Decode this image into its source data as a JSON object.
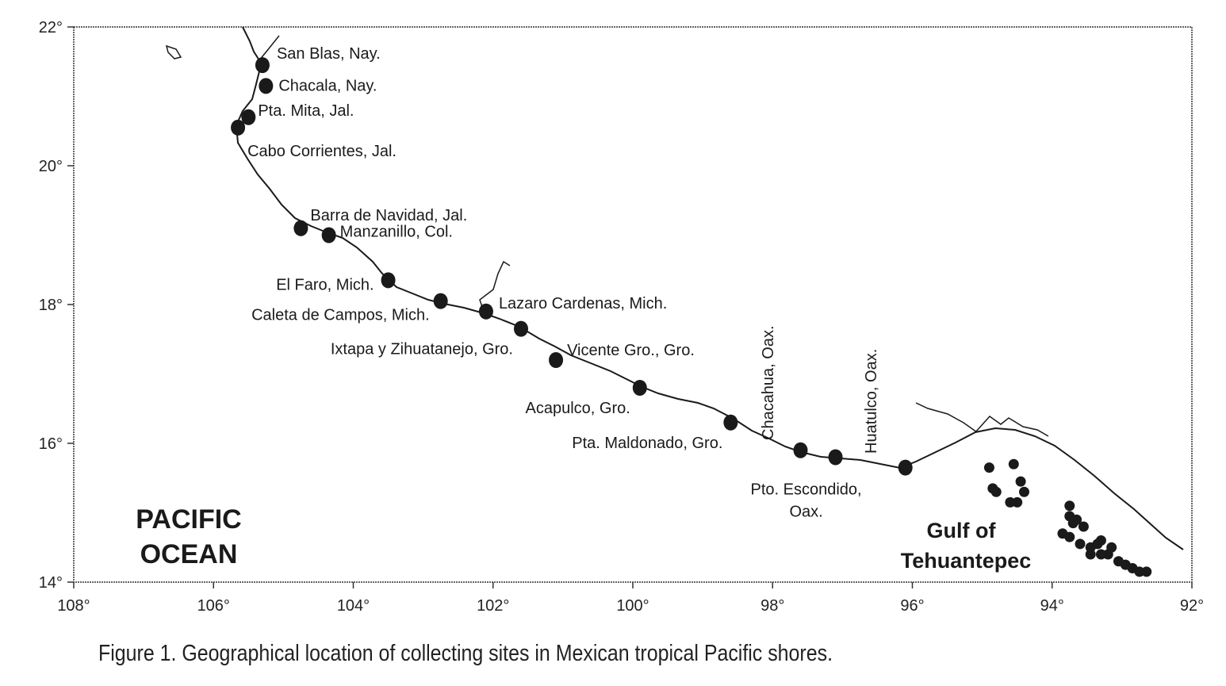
{
  "colors": {
    "ink": "#1a1a1a",
    "paper": "#ffffff"
  },
  "axes": {
    "x_ticks": [
      "108°",
      "106°",
      "104°",
      "102°",
      "100°",
      "98°",
      "96°",
      "94°",
      "92°"
    ],
    "y_ticks": [
      "22°",
      "20°",
      "18°",
      "16°",
      "14°"
    ],
    "lon_range": [
      -108,
      -92
    ],
    "lat_range": [
      14,
      22
    ]
  },
  "regions": {
    "pacific_line1": "PACIFIC",
    "pacific_line2": "OCEAN",
    "gulf_line1": "Gulf of",
    "gulf_line2": "Tehuantepec"
  },
  "sites": [
    {
      "label": "San Blas, Nay.",
      "lon": -105.3,
      "lat": 21.45
    },
    {
      "label": "Chacala, Nay.",
      "lon": -105.25,
      "lat": 21.15
    },
    {
      "label": "Pta. Mita, Jal.",
      "lon": -105.5,
      "lat": 20.7
    },
    {
      "label": "Cabo Corrientes, Jal.",
      "lon": -105.65,
      "lat": 20.55
    },
    {
      "label": "Barra de Navidad, Jal.",
      "lon": -104.75,
      "lat": 19.1
    },
    {
      "label": "Manzanillo, Col.",
      "lon": -104.35,
      "lat": 19.0
    },
    {
      "label": "El Faro, Mich.",
      "lon": -103.5,
      "lat": 18.35
    },
    {
      "label": "Caleta de Campos, Mich.",
      "lon": -102.75,
      "lat": 18.05
    },
    {
      "label": "Lazaro Cardenas, Mich.",
      "lon": -102.1,
      "lat": 17.9
    },
    {
      "label": "Ixtapa y Zihuatanejo, Gro.",
      "lon": -101.6,
      "lat": 17.65
    },
    {
      "label": "Vicente Gro., Gro.",
      "lon": -101.1,
      "lat": 17.2
    },
    {
      "label": "Acapulco, Gro.",
      "lon": -99.9,
      "lat": 16.8
    },
    {
      "label": "Pta. Maldonado, Gro.",
      "lon": -98.6,
      "lat": 16.3
    },
    {
      "label": "Chacahua, Oax.",
      "lon": -97.6,
      "lat": 15.9
    },
    {
      "label": "Pto. Escondido,",
      "label2": "Oax.",
      "lon": -97.1,
      "lat": 15.8
    },
    {
      "label": "Huatulco, Oax.",
      "lon": -96.1,
      "lat": 15.65
    }
  ],
  "gulf_points": [
    [
      -94.9,
      15.65
    ],
    [
      -94.85,
      15.35
    ],
    [
      -94.8,
      15.3
    ],
    [
      -94.55,
      15.7
    ],
    [
      -94.45,
      15.45
    ],
    [
      -94.4,
      15.3
    ],
    [
      -94.6,
      15.15
    ],
    [
      -94.5,
      15.15
    ],
    [
      -93.75,
      15.1
    ],
    [
      -93.75,
      14.95
    ],
    [
      -93.7,
      14.85
    ],
    [
      -93.65,
      14.9
    ],
    [
      -93.85,
      14.7
    ],
    [
      -93.75,
      14.65
    ],
    [
      -93.55,
      14.8
    ],
    [
      -93.6,
      14.55
    ],
    [
      -93.45,
      14.5
    ],
    [
      -93.35,
      14.55
    ],
    [
      -93.3,
      14.6
    ],
    [
      -93.45,
      14.4
    ],
    [
      -93.3,
      14.4
    ],
    [
      -93.2,
      14.4
    ],
    [
      -93.05,
      14.3
    ],
    [
      -92.95,
      14.25
    ],
    [
      -92.85,
      14.2
    ],
    [
      -92.75,
      14.15
    ],
    [
      -92.65,
      14.15
    ],
    [
      -93.15,
      14.5
    ]
  ],
  "caption": "Figure 1. Geographical location of collecting sites in Mexican tropical Pacific shores."
}
